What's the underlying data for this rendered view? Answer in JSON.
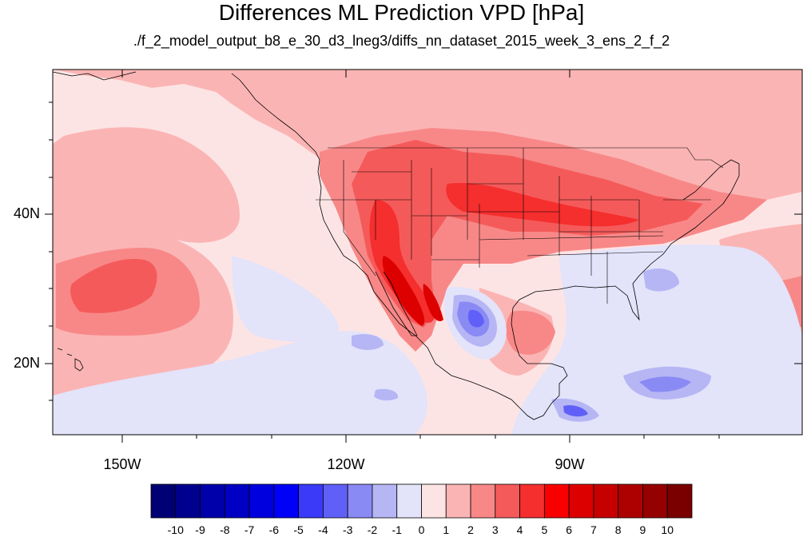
{
  "title": "Differences ML Prediction VPD [hPa]",
  "subtitle": "./f_2_model_output_b8_e_30_d3_lneg3/diffs_nn_dataset_2015_week_3_ens_2_f_2",
  "map": {
    "lat_labels": [
      "40N",
      "20N"
    ],
    "lon_labels": [
      "150W",
      "120W",
      "90W"
    ]
  },
  "colorbar": {
    "labels": [
      "-10",
      "-9",
      "-8",
      "-7",
      "-6",
      "-5",
      "-4",
      "-3",
      "-2",
      "-1",
      "0",
      "1",
      "2",
      "3",
      "4",
      "5",
      "6",
      "7",
      "8",
      "9",
      "10"
    ],
    "colors": [
      "#000075",
      "#00008f",
      "#0000aa",
      "#0000c4",
      "#0000de",
      "#0000f8",
      "#3a3af8",
      "#6060f8",
      "#8a8af5",
      "#b6b6f5",
      "#e3e3fa",
      "#fde4e4",
      "#fbb4b4",
      "#f88888",
      "#f55a5a",
      "#f52e2e",
      "#f80000",
      "#dd0000",
      "#c60000",
      "#ad0000",
      "#950000",
      "#7a0000"
    ]
  },
  "colors": {
    "background_diff": "#fde4e4",
    "light_pos": "#fbb4b4",
    "mid_pos": "#f88888",
    "strong_pos": "#f55a5a",
    "very_strong_pos": "#f52e2e",
    "peak_pos": "#dd0000",
    "light_neg": "#e3e3fa",
    "mid_neg": "#b6b6f5",
    "strong_neg": "#8a8af5",
    "very_strong_neg": "#6060f8"
  }
}
